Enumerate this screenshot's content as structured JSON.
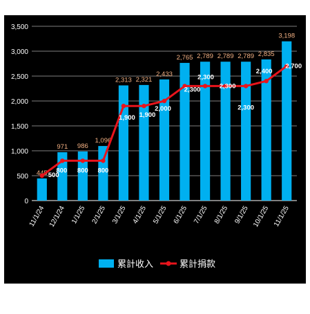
{
  "chart_data": {
    "type": "bar",
    "categories": [
      "11/1/24",
      "12/1/24",
      "1/1/25",
      "2/1/25",
      "3/1/25",
      "4/1/25",
      "5/1/25",
      "6/1/25",
      "7/1/25",
      "8/1/25",
      "9/1/25",
      "10/1/25",
      "11/1/25"
    ],
    "series": [
      {
        "name": "累計收入",
        "kind": "bar",
        "color": "#00b0f0",
        "values": [
          445,
          971,
          986,
          1096,
          2313,
          2321,
          2433,
          2765,
          2789,
          2789,
          2789,
          2835,
          3198
        ],
        "labels": [
          "445",
          "971",
          "986",
          "1,096",
          "2,313",
          "2,321",
          "2,433",
          "2,765",
          "2,789",
          "2,789",
          "2,789",
          "2,835",
          "3,198"
        ]
      },
      {
        "name": "累計捐款",
        "kind": "line",
        "color": "#e8141c",
        "values": [
          500,
          800,
          800,
          800,
          1900,
          1900,
          2000,
          2300,
          2300,
          2300,
          2300,
          2400,
          2700
        ],
        "labels": [
          "500",
          "800",
          "800",
          "800",
          "1,900",
          "1,900",
          "2,000",
          "2,300",
          "2,300",
          "2,300",
          "2,300",
          "2,400",
          "2,700"
        ]
      }
    ],
    "y_ticks": [
      "0",
      "500",
      "1,000",
      "1,500",
      "2,000",
      "2,500",
      "3,000",
      "3,500"
    ],
    "ylim": [
      0,
      3500
    ],
    "grid": true,
    "legend": "bottom",
    "background": "#000000",
    "text_color": "#ffffff",
    "bar_label_color": "#f4b183"
  }
}
